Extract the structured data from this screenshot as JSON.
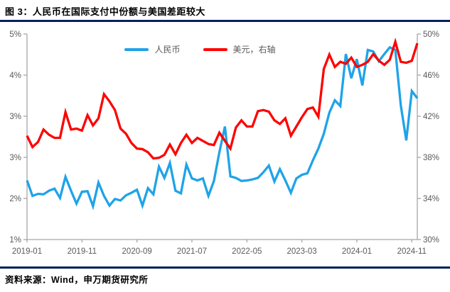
{
  "header": {
    "title": "图 3：人民币在国际支付中份额与美国差距较大"
  },
  "footer": {
    "source": "资料来源：Wind，申万期货研究所"
  },
  "legend": [
    {
      "label": "人民币",
      "color": "#1FA3E8"
    },
    {
      "label": "美元，右轴",
      "color": "#FE0000"
    }
  ],
  "colors": {
    "rmb_line": "#1FA3E8",
    "usd_line": "#FE0000",
    "rule": "#002060",
    "axis": "#A6A6A6",
    "tick_text": "#595959"
  },
  "chart_data": {
    "type": "line",
    "title": "人民币在国际支付中份额与美国差距较大",
    "grid": false,
    "legend_position": "top-center",
    "months": [
      "2019-01",
      "2019-02",
      "2019-03",
      "2019-04",
      "2019-05",
      "2019-06",
      "2019-07",
      "2019-08",
      "2019-09",
      "2019-10",
      "2019-11",
      "2019-12",
      "2020-01",
      "2020-02",
      "2020-03",
      "2020-04",
      "2020-05",
      "2020-06",
      "2020-07",
      "2020-08",
      "2020-09",
      "2020-10",
      "2020-11",
      "2020-12",
      "2021-01",
      "2021-02",
      "2021-03",
      "2021-04",
      "2021-05",
      "2021-06",
      "2021-07",
      "2021-08",
      "2021-09",
      "2021-10",
      "2021-11",
      "2021-12",
      "2022-01",
      "2022-02",
      "2022-03",
      "2022-04",
      "2022-05",
      "2022-06",
      "2022-07",
      "2022-08",
      "2022-09",
      "2022-10",
      "2022-11",
      "2022-12",
      "2023-01",
      "2023-02",
      "2023-03",
      "2023-04",
      "2023-05",
      "2023-06",
      "2023-07",
      "2023-08",
      "2023-09",
      "2023-10",
      "2023-11",
      "2023-12",
      "2024-01",
      "2024-02",
      "2024-03",
      "2024-04",
      "2024-05",
      "2024-06",
      "2024-07",
      "2024-08",
      "2024-09",
      "2024-10",
      "2024-11",
      "2024-12"
    ],
    "series": [
      {
        "name": "人民币",
        "axis": "left",
        "unit": "%",
        "color": "#1FA3E8",
        "values": [
          2.15,
          1.85,
          1.89,
          1.88,
          1.95,
          1.99,
          1.81,
          2.22,
          1.95,
          1.7,
          1.93,
          1.94,
          1.65,
          2.11,
          1.85,
          1.66,
          1.79,
          1.76,
          1.86,
          1.91,
          1.97,
          1.66,
          2.0,
          1.88,
          2.42,
          2.2,
          2.49,
          1.95,
          1.9,
          2.46,
          2.19,
          2.15,
          2.19,
          1.85,
          2.14,
          2.7,
          3.2,
          2.23,
          2.2,
          2.14,
          2.15,
          2.17,
          2.2,
          2.31,
          2.44,
          2.13,
          2.37,
          2.15,
          1.91,
          2.19,
          2.26,
          2.29,
          2.54,
          2.77,
          3.06,
          3.47,
          3.71,
          3.6,
          4.61,
          4.14,
          4.51,
          4.0,
          4.69,
          4.66,
          4.47,
          4.61,
          4.74,
          4.69,
          3.61,
          2.93,
          3.89,
          3.75
        ]
      },
      {
        "name": "美元，右轴",
        "axis": "right",
        "unit": "%",
        "color": "#FE0000",
        "values": [
          40.1,
          39.0,
          39.5,
          40.7,
          40.2,
          39.9,
          39.9,
          42.4,
          40.7,
          40.8,
          40.6,
          42.1,
          41.1,
          41.8,
          44.15,
          43.45,
          42.6,
          40.8,
          40.3,
          39.4,
          38.85,
          38.8,
          38.5,
          37.9,
          37.95,
          38.25,
          39.25,
          38.3,
          39.4,
          40.2,
          39.4,
          39.9,
          39.6,
          39.3,
          39.2,
          40.4,
          39.6,
          38.85,
          40.9,
          41.6,
          41.0,
          41.0,
          42.5,
          42.6,
          42.45,
          41.6,
          41.25,
          41.8,
          40.1,
          41.0,
          41.9,
          42.7,
          42.85,
          41.95,
          46.6,
          48.0,
          46.8,
          47.3,
          47.1,
          47.7,
          46.8,
          47.0,
          47.3,
          48.05,
          47.4,
          47.0,
          47.5,
          49.25,
          47.3,
          47.2,
          47.4,
          49.1
        ]
      }
    ],
    "left_axis": {
      "min": 1,
      "max": 5,
      "tick_values": [
        5,
        4.2,
        3.4,
        2.6,
        1.8,
        1
      ],
      "tick_labels": [
        "5%",
        "4%",
        "3%",
        "3%",
        "2%",
        "1%"
      ]
    },
    "right_axis": {
      "min": 30,
      "max": 50,
      "tick_values": [
        50,
        46,
        42,
        38,
        34,
        30
      ],
      "tick_labels": [
        "50%",
        "46%",
        "42%",
        "38%",
        "34%",
        "30%"
      ]
    },
    "x_ticks": {
      "indices": [
        0,
        10,
        20,
        30,
        40,
        50,
        60,
        70
      ],
      "labels": [
        "2019-01",
        "2019-11",
        "2020-09",
        "2021-07",
        "2022-05",
        "2023-03",
        "2024-01",
        "2024-11"
      ]
    }
  }
}
